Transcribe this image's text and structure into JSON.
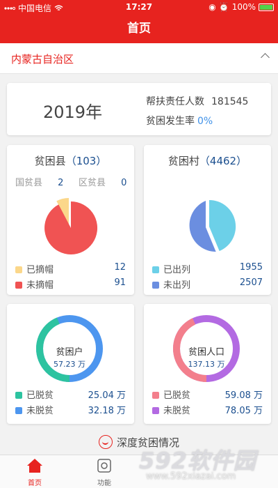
{
  "status_bar": {
    "carrier": "中国电信",
    "time": "17:27",
    "battery": "100%"
  },
  "header": {
    "title": "首页"
  },
  "region": {
    "name": "内蒙古自治区"
  },
  "summary": {
    "year": "2019年",
    "responsible_label": "帮扶责任人数",
    "responsible_value": "181545",
    "rate_label": "贫困发生率",
    "rate_value": "0%"
  },
  "counties": {
    "title": "贫困县",
    "count": "（103）",
    "national_label": "国贫县",
    "national_value": "2",
    "district_label": "区贫县",
    "district_value": "0",
    "legend": [
      {
        "label": "已摘帽",
        "value": "12",
        "color": "#fbd78a"
      },
      {
        "label": "未摘帽",
        "value": "91",
        "color": "#f05353"
      }
    ]
  },
  "villages": {
    "title": "贫困村",
    "count": "（4462）",
    "legend": [
      {
        "label": "已出列",
        "value": "1955",
        "color": "#6cd0e8"
      },
      {
        "label": "未出列",
        "value": "2507",
        "color": "#6b8ee0"
      }
    ]
  },
  "households": {
    "center_title": "贫困户",
    "center_value": "57.23 万",
    "legend": [
      {
        "label": "已脱贫",
        "value": "25.04 万",
        "color": "#2dc3a0"
      },
      {
        "label": "未脱贫",
        "value": "32.18 万",
        "color": "#4d96ef"
      }
    ]
  },
  "population": {
    "center_title": "贫困人口",
    "center_value": "137.13 万",
    "legend": [
      {
        "label": "已脱贫",
        "value": "59.08 万",
        "color": "#f37f8c"
      },
      {
        "label": "未脱贫",
        "value": "78.05 万",
        "color": "#b36ae2"
      }
    ]
  },
  "deep_link": {
    "label": "深度贫困情况"
  },
  "tabs": [
    {
      "label": "首页",
      "icon": "home-icon"
    },
    {
      "label": "功能",
      "icon": "function-icon"
    }
  ],
  "watermark": {
    "brand": "592软件园",
    "url": "www.592xiazai.com"
  }
}
